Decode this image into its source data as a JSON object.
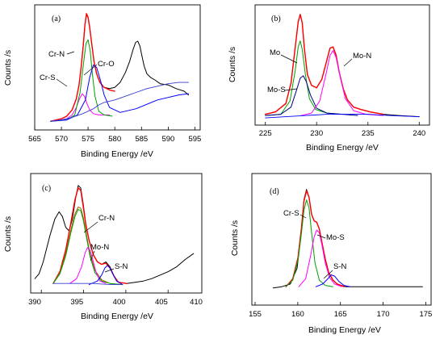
{
  "chart_data": [
    {
      "type": "line",
      "panel_label": "(a)",
      "xlabel": "Binding Energy /eV",
      "ylabel": "Counts /s",
      "xlim": [
        565,
        596
      ],
      "ylim": [
        0,
        1.0
      ],
      "xticks": [
        565,
        570,
        575,
        580,
        585,
        590,
        595
      ],
      "grid": false,
      "annotations": [
        {
          "text": "Cr-N",
          "x": 575.0,
          "y": 0.74
        },
        {
          "text": "Cr-S",
          "x": 573.6,
          "y": 0.5
        },
        {
          "text": "Cr-O",
          "x": 576.2,
          "y": 0.55
        }
      ],
      "series": [
        {
          "color": "#000000",
          "width": 1.0,
          "x": [
            568.0,
            570.0,
            571.0,
            572.0,
            572.8,
            573.3,
            573.7,
            574.1,
            574.4,
            574.7,
            575.0,
            575.3,
            575.7,
            576.1,
            576.6,
            577.2,
            578.0,
            579.0,
            580.0,
            581.0,
            582.0,
            582.8,
            583.4,
            583.9,
            584.3,
            584.7,
            585.1,
            585.5,
            586.0,
            586.7,
            587.5,
            588.5,
            590.0,
            591.5,
            593.0,
            593.8
          ],
          "y": [
            0.07,
            0.09,
            0.11,
            0.16,
            0.25,
            0.36,
            0.5,
            0.68,
            0.84,
            0.92,
            0.9,
            0.82,
            0.68,
            0.55,
            0.45,
            0.38,
            0.34,
            0.33,
            0.34,
            0.38,
            0.46,
            0.55,
            0.64,
            0.7,
            0.71,
            0.67,
            0.59,
            0.51,
            0.45,
            0.42,
            0.4,
            0.37,
            0.36,
            0.33,
            0.31,
            0.28
          ]
        },
        {
          "color": "#ff0000",
          "width": 1.4,
          "x": [
            568.0,
            570.0,
            571.0,
            572.0,
            572.8,
            573.3,
            573.7,
            574.1,
            574.4,
            574.7,
            575.0,
            575.3,
            575.7,
            576.1,
            576.6,
            577.2,
            578.0,
            579.0,
            580.0
          ],
          "y": [
            0.07,
            0.09,
            0.11,
            0.16,
            0.25,
            0.36,
            0.5,
            0.68,
            0.84,
            0.93,
            0.9,
            0.82,
            0.68,
            0.55,
            0.45,
            0.38,
            0.34,
            0.32,
            0.31
          ]
        },
        {
          "color": "#ff00ff",
          "width": 1.0,
          "x": [
            568,
            570,
            571,
            572,
            572.8,
            573.4,
            573.9,
            574.3,
            574.8,
            575.3,
            576,
            577,
            578,
            579
          ],
          "y": [
            0.07,
            0.08,
            0.09,
            0.12,
            0.18,
            0.25,
            0.29,
            0.27,
            0.21,
            0.16,
            0.13,
            0.12,
            0.12,
            0.12
          ]
        },
        {
          "color": "#00a000",
          "width": 1.0,
          "x": [
            568,
            571,
            572.5,
            573.5,
            574.2,
            574.6,
            575.0,
            575.4,
            575.8,
            576.3,
            577,
            578,
            579.5
          ],
          "y": [
            0.07,
            0.08,
            0.12,
            0.3,
            0.55,
            0.69,
            0.72,
            0.63,
            0.45,
            0.27,
            0.15,
            0.12,
            0.11
          ]
        },
        {
          "color": "#0000ff",
          "width": 1.0,
          "x": [
            568,
            571,
            573,
            574.5,
            575.3,
            576.0,
            576.6,
            577.3,
            578.0,
            579,
            581,
            584,
            588,
            592,
            593.8
          ],
          "y": [
            0.07,
            0.08,
            0.12,
            0.24,
            0.42,
            0.52,
            0.5,
            0.4,
            0.28,
            0.18,
            0.14,
            0.17,
            0.24,
            0.28,
            0.29
          ]
        },
        {
          "color": "#3a3ad0",
          "width": 0.9,
          "x": [
            568,
            570,
            572,
            574,
            575,
            576,
            577,
            578,
            580,
            582,
            584,
            586,
            588,
            590,
            592,
            593.8
          ],
          "y": [
            0.07,
            0.08,
            0.1,
            0.13,
            0.15,
            0.17,
            0.2,
            0.22,
            0.24,
            0.27,
            0.3,
            0.33,
            0.35,
            0.37,
            0.38,
            0.38
          ]
        }
      ]
    },
    {
      "type": "line",
      "panel_label": "(b)",
      "xlabel": "Binding Energy /eV",
      "ylabel": "Counts /s",
      "xlim": [
        224,
        241
      ],
      "ylim": [
        0,
        1.0
      ],
      "xticks": [
        225,
        230,
        235,
        240
      ],
      "grid": false,
      "annotations": [
        {
          "text": "Mo",
          "x": 226.0,
          "y": 0.71
        },
        {
          "text": "Mo-N",
          "x": 233.6,
          "y": 0.69
        },
        {
          "text": "Mo-S",
          "x": 226.0,
          "y": 0.4
        }
      ],
      "series": [
        {
          "color": "#000000",
          "width": 1.0,
          "x": [
            225.0,
            226.0,
            227.0,
            227.5,
            227.9,
            228.2,
            228.4,
            228.6,
            228.8,
            229.1,
            229.5,
            230.0,
            230.5,
            231.0,
            231.3,
            231.6,
            231.9,
            232.2,
            232.6,
            233.0,
            233.6,
            234.3,
            235.2,
            236.5,
            238.0,
            240.0
          ],
          "y": [
            0.09,
            0.11,
            0.18,
            0.35,
            0.64,
            0.86,
            0.92,
            0.85,
            0.64,
            0.42,
            0.33,
            0.31,
            0.38,
            0.54,
            0.64,
            0.65,
            0.58,
            0.44,
            0.3,
            0.21,
            0.15,
            0.13,
            0.11,
            0.09,
            0.08,
            0.07
          ]
        },
        {
          "color": "#ff0000",
          "width": 1.4,
          "x": [
            225.0,
            226.0,
            227.0,
            227.5,
            227.9,
            228.2,
            228.4,
            228.6,
            228.8,
            229.1,
            229.5,
            230.0,
            230.5,
            231.0,
            231.3,
            231.6,
            231.9,
            232.2,
            232.6,
            233.0,
            233.6,
            234.3,
            235.2,
            236.5
          ],
          "y": [
            0.09,
            0.11,
            0.18,
            0.35,
            0.64,
            0.86,
            0.92,
            0.85,
            0.64,
            0.42,
            0.33,
            0.31,
            0.38,
            0.54,
            0.64,
            0.65,
            0.58,
            0.44,
            0.3,
            0.21,
            0.15,
            0.13,
            0.11,
            0.09
          ]
        },
        {
          "color": "#00a000",
          "width": 1.0,
          "x": [
            225,
            226.5,
            227.4,
            227.9,
            228.2,
            228.4,
            228.6,
            228.9,
            229.3,
            229.9,
            231,
            232.5
          ],
          "y": [
            0.08,
            0.09,
            0.2,
            0.45,
            0.65,
            0.7,
            0.63,
            0.42,
            0.22,
            0.13,
            0.1,
            0.09
          ]
        },
        {
          "color": "#000080",
          "width": 1.0,
          "x": [
            225,
            226.5,
            227.5,
            228.0,
            228.4,
            228.7,
            229.0,
            229.4,
            230.0,
            231,
            232.5,
            234
          ],
          "y": [
            0.08,
            0.09,
            0.15,
            0.28,
            0.39,
            0.41,
            0.36,
            0.25,
            0.14,
            0.1,
            0.09,
            0.08
          ]
        },
        {
          "color": "#ff00ff",
          "width": 1.0,
          "x": [
            228.5,
            229.5,
            230.3,
            230.9,
            231.3,
            231.6,
            231.9,
            232.3,
            232.8,
            233.6,
            234.8,
            236.5
          ],
          "y": [
            0.08,
            0.1,
            0.2,
            0.42,
            0.58,
            0.62,
            0.56,
            0.4,
            0.22,
            0.12,
            0.09,
            0.08
          ]
        },
        {
          "color": "#0000ff",
          "width": 0.9,
          "x": [
            225,
            227,
            229,
            231,
            233,
            235,
            237,
            240
          ],
          "y": [
            0.06,
            0.07,
            0.08,
            0.09,
            0.09,
            0.09,
            0.08,
            0.07
          ]
        }
      ]
    },
    {
      "type": "line",
      "panel_label": "(c)",
      "xlabel": "Binding Energy /eV",
      "ylabel": "Counts /s",
      "xlim": [
        390.5,
        411
      ],
      "ylim": [
        0,
        1.0
      ],
      "xticks": [
        390,
        395,
        400,
        405,
        410
      ],
      "grid": false,
      "annotations": [
        {
          "text": "Cr-N",
          "x": 398.2,
          "y": 0.62
        },
        {
          "text": "Mo-N",
          "x": 397.6,
          "y": 0.4
        },
        {
          "text": "S-N",
          "x": 400.0,
          "y": 0.24
        }
      ],
      "series": [
        {
          "color": "#000000",
          "width": 1.0,
          "x": [
            391.0,
            391.5,
            392.0,
            392.8,
            393.4,
            393.9,
            394.3,
            394.7,
            395.1,
            395.5,
            395.9,
            396.2,
            396.5,
            396.8,
            397.1,
            397.5,
            398.0,
            398.5,
            399.0,
            399.5,
            400.0,
            400.5,
            401.0,
            402.0,
            403.0,
            404.0,
            405.0,
            406.0,
            407.0,
            408.0,
            409.0,
            410.0
          ],
          "y": [
            0.12,
            0.16,
            0.26,
            0.48,
            0.62,
            0.68,
            0.64,
            0.55,
            0.52,
            0.62,
            0.8,
            0.9,
            0.88,
            0.74,
            0.58,
            0.44,
            0.32,
            0.26,
            0.24,
            0.26,
            0.22,
            0.14,
            0.09,
            0.08,
            0.09,
            0.1,
            0.12,
            0.15,
            0.18,
            0.22,
            0.28,
            0.33
          ]
        },
        {
          "color": "#ff0000",
          "width": 1.4,
          "x": [
            393.2,
            394.0,
            394.7,
            395.3,
            395.8,
            396.2,
            396.5,
            396.8,
            397.1,
            397.5,
            398.0,
            398.5,
            399.0,
            399.5,
            400.0,
            400.5,
            401.0,
            402.0
          ],
          "y": [
            0.08,
            0.18,
            0.36,
            0.58,
            0.78,
            0.88,
            0.86,
            0.72,
            0.57,
            0.44,
            0.32,
            0.26,
            0.24,
            0.25,
            0.21,
            0.14,
            0.09,
            0.08
          ]
        },
        {
          "color": "#a05a00",
          "width": 1.0,
          "x": [
            393.2,
            394,
            394.7,
            395.3,
            395.8,
            396.2,
            396.5,
            396.8,
            397.2,
            397.6,
            398.2,
            399,
            400,
            401.5
          ],
          "y": [
            0.08,
            0.17,
            0.33,
            0.52,
            0.66,
            0.72,
            0.71,
            0.63,
            0.48,
            0.33,
            0.19,
            0.11,
            0.08,
            0.07
          ]
        },
        {
          "color": "#00a000",
          "width": 1.0,
          "x": [
            393.2,
            394,
            394.7,
            395.3,
            395.8,
            396.2,
            396.5,
            396.8,
            397.2,
            397.6,
            398.2,
            399,
            400,
            401.5
          ],
          "y": [
            0.08,
            0.16,
            0.31,
            0.5,
            0.64,
            0.7,
            0.69,
            0.61,
            0.46,
            0.31,
            0.17,
            0.1,
            0.08,
            0.07
          ]
        },
        {
          "color": "#ff00ff",
          "width": 1.0,
          "x": [
            395.2,
            396.0,
            396.6,
            397.0,
            397.3,
            397.6,
            397.9,
            398.3,
            398.8,
            399.5
          ],
          "y": [
            0.08,
            0.12,
            0.22,
            0.33,
            0.38,
            0.36,
            0.29,
            0.18,
            0.1,
            0.08
          ]
        },
        {
          "color": "#0000ff",
          "width": 1.0,
          "x": [
            397.5,
            398.5,
            399.0,
            399.4,
            399.7,
            400.0,
            400.4,
            400.8,
            401.5
          ],
          "y": [
            0.07,
            0.1,
            0.15,
            0.21,
            0.23,
            0.21,
            0.15,
            0.1,
            0.07
          ]
        },
        {
          "color": "#3a3ad0",
          "width": 0.9,
          "x": [
            393.2,
            396,
            398,
            400,
            401.5
          ],
          "y": [
            0.08,
            0.08,
            0.08,
            0.07,
            0.07
          ]
        }
      ]
    },
    {
      "type": "line",
      "panel_label": "(d)",
      "xlabel": "Binding Energy /eV",
      "ylabel": "Counts /s",
      "xlim": [
        155,
        176
      ],
      "ylim": [
        0,
        1.0
      ],
      "xticks": [
        155,
        160,
        165,
        170,
        175
      ],
      "grid": false,
      "annotations": [
        {
          "text": "Cr-S",
          "x": 158.8,
          "y": 0.74
        },
        {
          "text": "Mo-S",
          "x": 163.8,
          "y": 0.52
        },
        {
          "text": "S-N",
          "x": 164.2,
          "y": 0.28
        }
      ],
      "series": [
        {
          "color": "#000000",
          "width": 1.0,
          "x": [
            157.5,
            158.5,
            159.5,
            160.3,
            160.8,
            161.1,
            161.4,
            161.7,
            162.0,
            162.3,
            162.6,
            162.9,
            163.2,
            163.6,
            164.0,
            164.5,
            165.0,
            165.5,
            166.0,
            167.0,
            168.0,
            170.0,
            172.0,
            174.0,
            175.0
          ],
          "y": [
            0.13,
            0.14,
            0.16,
            0.28,
            0.56,
            0.8,
            0.88,
            0.82,
            0.69,
            0.64,
            0.63,
            0.58,
            0.48,
            0.35,
            0.25,
            0.19,
            0.16,
            0.15,
            0.14,
            0.14,
            0.14,
            0.14,
            0.14,
            0.14,
            0.14
          ]
        },
        {
          "color": "#ff0000",
          "width": 1.4,
          "x": [
            159.0,
            159.8,
            160.4,
            160.8,
            161.1,
            161.4,
            161.7,
            162.0,
            162.3,
            162.6,
            162.9,
            163.2,
            163.6,
            164.0,
            164.5,
            165.0,
            165.8
          ],
          "y": [
            0.14,
            0.2,
            0.36,
            0.58,
            0.79,
            0.87,
            0.82,
            0.69,
            0.64,
            0.63,
            0.58,
            0.48,
            0.35,
            0.25,
            0.19,
            0.16,
            0.14
          ]
        },
        {
          "color": "#00a000",
          "width": 1.0,
          "x": [
            159.0,
            159.8,
            160.4,
            160.8,
            161.1,
            161.4,
            161.7,
            162.0,
            162.4,
            162.9,
            163.6,
            164.5
          ],
          "y": [
            0.14,
            0.19,
            0.34,
            0.54,
            0.72,
            0.8,
            0.74,
            0.55,
            0.32,
            0.19,
            0.15,
            0.14
          ]
        },
        {
          "color": "#ff00ff",
          "width": 1.0,
          "x": [
            160.5,
            161.3,
            161.9,
            162.3,
            162.6,
            162.9,
            163.2,
            163.6,
            164.1,
            164.7,
            165.5
          ],
          "y": [
            0.14,
            0.2,
            0.38,
            0.52,
            0.57,
            0.55,
            0.46,
            0.32,
            0.21,
            0.16,
            0.14
          ]
        },
        {
          "color": "#0000ff",
          "width": 1.0,
          "x": [
            162.5,
            163.3,
            163.9,
            164.3,
            164.7,
            165.2,
            165.8,
            166.5
          ],
          "y": [
            0.14,
            0.16,
            0.2,
            0.23,
            0.22,
            0.18,
            0.15,
            0.14
          ]
        }
      ]
    }
  ]
}
